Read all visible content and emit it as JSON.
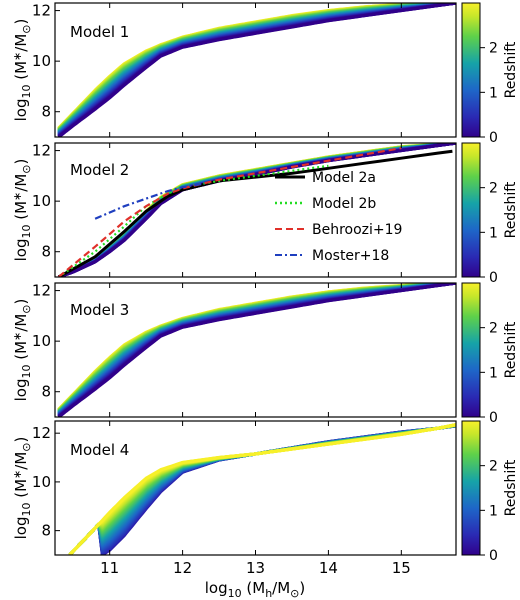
{
  "chart_data": [
    {
      "type": "line",
      "title": "Model 1",
      "xlabel": "log10 (Mh/M⊙)",
      "ylabel": "log10 (M*/M⊙)",
      "xlim": [
        10.25,
        15.75
      ],
      "ylim": [
        7.0,
        12.3
      ],
      "x_ticks": [
        11,
        12,
        13,
        14,
        15
      ],
      "y_ticks": [
        8,
        10,
        12
      ],
      "colorbar": {
        "label": "Redshift",
        "range": [
          0,
          3
        ],
        "ticks": [
          0,
          1,
          2
        ]
      },
      "series": [
        {
          "redshift": 0.0,
          "x": [
            10.3,
            10.5,
            10.8,
            11.0,
            11.2,
            11.5,
            11.7,
            12.0,
            12.5,
            13.0,
            13.5,
            14.0,
            14.5,
            15.0,
            15.5,
            15.75
          ],
          "y": [
            7.0,
            7.45,
            8.1,
            8.55,
            9.05,
            9.75,
            10.2,
            10.55,
            10.85,
            11.1,
            11.35,
            11.6,
            11.8,
            12.0,
            12.2,
            12.3
          ]
        },
        {
          "redshift": 2.9,
          "x": [
            10.3,
            10.5,
            10.8,
            11.0,
            11.2,
            11.5,
            11.7,
            12.0,
            12.5,
            13.0,
            13.5,
            14.0,
            14.5,
            15.0,
            15.5,
            15.75
          ],
          "y": [
            7.35,
            7.95,
            8.85,
            9.4,
            9.9,
            10.4,
            10.65,
            10.95,
            11.3,
            11.55,
            11.8,
            12.0,
            12.15,
            12.25,
            12.3,
            12.3
          ]
        }
      ]
    },
    {
      "type": "line",
      "title": "Model 2",
      "xlabel": "log10 (Mh/M⊙)",
      "ylabel": "log10 (M*/M⊙)",
      "xlim": [
        10.25,
        15.75
      ],
      "ylim": [
        7.0,
        12.3
      ],
      "x_ticks": [
        11,
        12,
        13,
        14,
        15
      ],
      "y_ticks": [
        8,
        10,
        12
      ],
      "legend": {
        "position": "right",
        "entries": [
          "Model 2a",
          "Model 2b",
          "Behroozi+19",
          "Moster+18"
        ]
      },
      "colorbar": {
        "label": "Redshift",
        "range": [
          0,
          3
        ],
        "ticks": [
          0,
          1,
          2
        ]
      },
      "series": [
        {
          "redshift": 0.0,
          "x": [
            10.3,
            10.5,
            10.8,
            11.0,
            11.2,
            11.5,
            11.7,
            12.0,
            12.5,
            13.0,
            13.5,
            14.0,
            14.5,
            15.0,
            15.5,
            15.75
          ],
          "y": [
            7.0,
            7.2,
            7.6,
            8.0,
            8.45,
            9.3,
            9.9,
            10.45,
            10.8,
            11.05,
            11.35,
            11.6,
            11.8,
            12.0,
            12.2,
            12.3
          ]
        },
        {
          "redshift": 2.9,
          "x": [
            10.3,
            10.5,
            10.8,
            11.0,
            11.2,
            11.5,
            11.7,
            12.0,
            12.5,
            13.0,
            13.5,
            14.0,
            14.5,
            15.0,
            15.5,
            15.75
          ],
          "y": [
            7.0,
            7.25,
            7.7,
            8.2,
            8.7,
            9.6,
            10.15,
            10.65,
            11.0,
            11.25,
            11.5,
            11.75,
            11.95,
            12.15,
            12.25,
            12.3
          ]
        },
        {
          "name": "Model 2a",
          "color": "#000000",
          "style": "solid",
          "x": [
            10.3,
            10.8,
            11.2,
            11.5,
            11.8,
            12.0,
            12.5,
            13.0,
            13.5,
            14.0,
            14.5,
            15.0,
            15.5,
            15.7
          ],
          "y": [
            7.0,
            7.8,
            8.8,
            9.6,
            10.2,
            10.45,
            10.8,
            10.95,
            11.1,
            11.3,
            11.5,
            11.7,
            11.9,
            11.97
          ]
        },
        {
          "name": "Model 2b",
          "color": "#22dd22",
          "style": "dotted",
          "x": [
            10.3,
            10.8,
            11.2,
            11.5,
            11.8,
            12.0,
            12.5,
            13.0,
            13.5,
            14.0
          ],
          "y": [
            7.0,
            8.0,
            9.0,
            9.8,
            10.3,
            10.55,
            10.8,
            11.0,
            11.2,
            11.4
          ]
        },
        {
          "name": "Behroozi+19",
          "color": "#e0302a",
          "style": "dashed",
          "x": [
            10.3,
            10.8,
            11.2,
            11.5,
            11.8,
            12.0,
            12.5,
            13.0,
            13.5,
            14.0,
            14.5,
            15.0
          ],
          "y": [
            7.0,
            8.2,
            9.2,
            9.8,
            10.3,
            10.5,
            10.85,
            11.1,
            11.35,
            11.6,
            11.85,
            12.1
          ]
        },
        {
          "name": "Moster+18",
          "color": "#1f3fbf",
          "style": "dashdot",
          "x": [
            10.8,
            11.0,
            11.2,
            11.5,
            11.8,
            12.0,
            12.3
          ],
          "y": [
            9.3,
            9.55,
            9.8,
            10.1,
            10.4,
            10.55,
            10.7
          ]
        }
      ]
    },
    {
      "type": "line",
      "title": "Model 3",
      "xlabel": "log10 (Mh/M⊙)",
      "ylabel": "log10 (M*/M⊙)",
      "xlim": [
        10.25,
        15.75
      ],
      "ylim": [
        7.0,
        12.3
      ],
      "x_ticks": [
        11,
        12,
        13,
        14,
        15
      ],
      "y_ticks": [
        8,
        10,
        12
      ],
      "colorbar": {
        "label": "Redshift",
        "range": [
          0,
          3
        ],
        "ticks": [
          0,
          1,
          2
        ]
      },
      "series": [
        {
          "redshift": 0.0,
          "x": [
            10.3,
            10.5,
            10.8,
            11.0,
            11.2,
            11.5,
            11.7,
            12.0,
            12.5,
            13.0,
            13.5,
            14.0,
            14.5,
            15.0,
            15.5,
            15.75
          ],
          "y": [
            7.0,
            7.45,
            8.1,
            8.55,
            9.05,
            9.75,
            10.2,
            10.55,
            10.85,
            11.1,
            11.35,
            11.6,
            11.8,
            12.0,
            12.2,
            12.3
          ]
        },
        {
          "redshift": 2.9,
          "x": [
            10.3,
            10.5,
            10.8,
            11.0,
            11.2,
            11.5,
            11.7,
            12.0,
            12.5,
            13.0,
            13.5,
            14.0,
            14.5,
            15.0,
            15.5,
            15.75
          ],
          "y": [
            7.3,
            7.9,
            8.8,
            9.35,
            9.85,
            10.35,
            10.6,
            10.9,
            11.25,
            11.5,
            11.75,
            11.95,
            12.1,
            12.2,
            12.3,
            12.3
          ]
        }
      ]
    },
    {
      "type": "line",
      "title": "Model 4",
      "xlabel": "log10 (Mh/M⊙)",
      "ylabel": "log10 (M*/M⊙)",
      "xlim": [
        10.25,
        15.75
      ],
      "ylim": [
        7.0,
        12.5
      ],
      "x_ticks": [
        11,
        12,
        13,
        14,
        15
      ],
      "y_ticks": [
        8,
        10,
        12
      ],
      "colorbar": {
        "label": "Redshift",
        "range": [
          0,
          3
        ],
        "ticks": [
          0,
          1,
          2
        ]
      },
      "series": [
        {
          "redshift": 0.0,
          "x": [
            10.45,
            10.8,
            11.0,
            11.2,
            11.5,
            11.7,
            12.0,
            12.5,
            13.0,
            13.5,
            14.0,
            14.5,
            15.0,
            15.5,
            15.75
          ],
          "y": [
            7.0,
            8.1,
            8.75,
            9.35,
            10.15,
            10.5,
            10.8,
            11.0,
            11.15,
            11.35,
            11.55,
            11.75,
            11.95,
            12.2,
            12.35
          ]
        },
        {
          "redshift": 2.9,
          "x": [
            10.9,
            11.0,
            11.2,
            11.5,
            11.7,
            12.0,
            12.5,
            13.0,
            13.5,
            14.0,
            14.5,
            15.0,
            15.5,
            15.75
          ],
          "y": [
            7.0,
            7.2,
            7.8,
            8.9,
            9.6,
            10.4,
            10.9,
            11.15,
            11.4,
            11.65,
            11.85,
            12.05,
            12.2,
            12.3
          ]
        }
      ]
    }
  ]
}
